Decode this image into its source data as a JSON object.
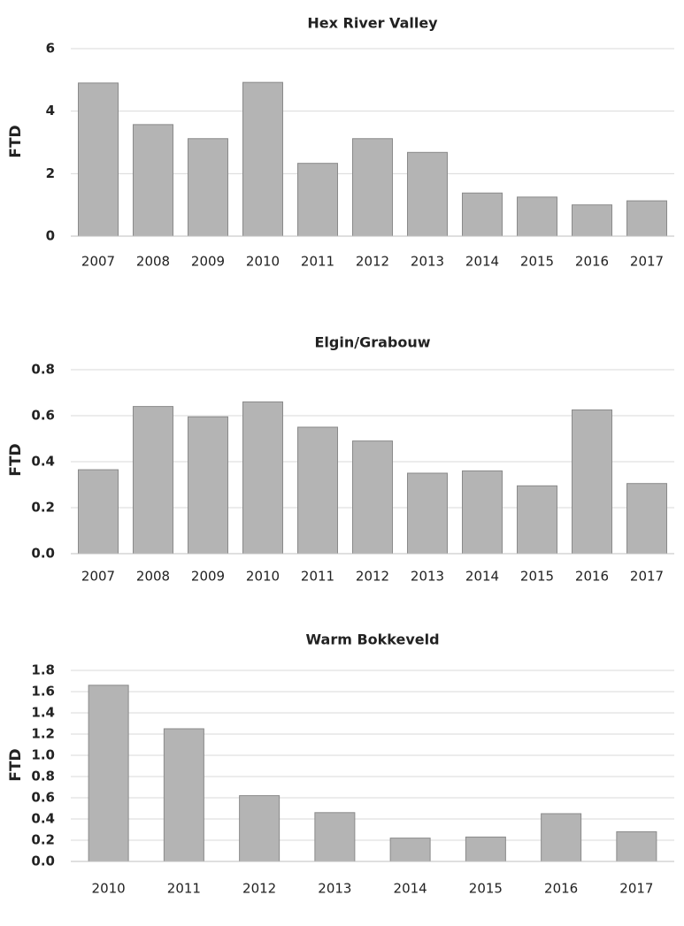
{
  "chart_data": [
    {
      "type": "bar",
      "title": "Hex River Valley",
      "y_label": "FTD",
      "categories": [
        "2007",
        "2008",
        "2009",
        "2010",
        "2011",
        "2012",
        "2013",
        "2014",
        "2015",
        "2016",
        "2017"
      ],
      "values": [
        4.9,
        3.57,
        3.12,
        4.92,
        2.33,
        3.12,
        2.68,
        1.38,
        1.25,
        1.0,
        1.13
      ],
      "color": "#b4b4b4",
      "ylim": [
        0,
        6
      ],
      "yticks": [
        0,
        2,
        4,
        6
      ],
      "grid": true
    },
    {
      "type": "bar",
      "title": "Elgin/Grabouw",
      "y_label": "FTD",
      "categories": [
        "2007",
        "2008",
        "2009",
        "2010",
        "2011",
        "2012",
        "2013",
        "2014",
        "2015",
        "2016",
        "2017"
      ],
      "values": [
        0.365,
        0.64,
        0.595,
        0.66,
        0.55,
        0.49,
        0.35,
        0.36,
        0.295,
        0.625,
        0.305
      ],
      "color": "#b4b4b4",
      "ylim": [
        0,
        0.8
      ],
      "yticks": [
        {
          "value": 0,
          "label": "0.0"
        },
        0.2,
        0.4,
        0.6,
        0.8
      ],
      "grid": true
    },
    {
      "type": "bar",
      "title": "Warm Bokkeveld",
      "y_label": "FTD",
      "categories": [
        "2010",
        "2011",
        "2012",
        "2013",
        "2014",
        "2015",
        "2016",
        "2017"
      ],
      "values": [
        1.66,
        1.25,
        0.62,
        0.46,
        0.22,
        0.23,
        0.45,
        0.28
      ],
      "color": "#b4b4b4",
      "ylim": [
        0,
        1.8
      ],
      "yticks": [
        {
          "value": 0,
          "label": "0.0"
        },
        0.2,
        0.4,
        0.6,
        0.8,
        {
          "value": 1,
          "label": "1.0"
        },
        1.2,
        1.4,
        1.6,
        1.8
      ],
      "grid": true
    }
  ]
}
